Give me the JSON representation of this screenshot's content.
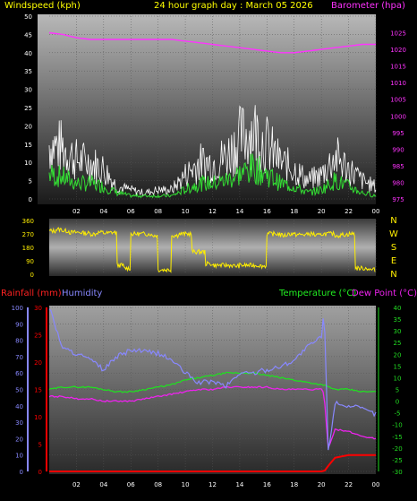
{
  "header": {
    "left_label": "Windspeed (kph)",
    "center_label": "24 hour graph day : March 05 2026",
    "right_label": "Barometer (hpa)"
  },
  "colors": {
    "background": "#000000",
    "gust": "#ffffff",
    "avg_wind": "#33dd33",
    "barometer": "#ff33ff",
    "direction": "#ffee00",
    "rainfall": "#ff0000",
    "humidity": "#8888ff",
    "temperature": "#22dd22",
    "dew_point": "#ee22ee",
    "header_yellow": "#ffff00",
    "header_magenta": "#ff33ff",
    "header_red": "#ff2222",
    "header_blue": "#8888ff",
    "header_green": "#22ee22",
    "axis_text": "#ffffff"
  },
  "x_ticks": [
    "02",
    "04",
    "06",
    "08",
    "10",
    "12",
    "14",
    "16",
    "18",
    "20",
    "22",
    "00"
  ],
  "compass": [
    "N",
    "W",
    "S",
    "E",
    "N"
  ],
  "bottom_header": {
    "rain_label": "Rainfall (mm)",
    "humidity_label": "Humidity",
    "temp_label": "Temperature (°C)",
    "dew_label": "Dew Point (°C)"
  },
  "chart_data": [
    {
      "type": "line",
      "name": "wind-barometer",
      "x": [
        0,
        1,
        2,
        3,
        4,
        5,
        6,
        7,
        8,
        9,
        10,
        11,
        12,
        13,
        14,
        15,
        16,
        17,
        18,
        19,
        20,
        21,
        22,
        23,
        24
      ],
      "x_ticks": [
        "02",
        "04",
        "06",
        "08",
        "10",
        "12",
        "14",
        "16",
        "18",
        "20",
        "22",
        "00"
      ],
      "y_left": {
        "label": "Windspeed (kph)",
        "ylim": [
          0,
          50
        ],
        "ticks": [
          0,
          5,
          10,
          15,
          20,
          25,
          30,
          35,
          40,
          45,
          50
        ]
      },
      "y_right": {
        "label": "Barometer (hpa)",
        "ylim": [
          975,
          1030
        ],
        "ticks": [
          975,
          980,
          985,
          990,
          995,
          1000,
          1005,
          1010,
          1015,
          1020,
          1025
        ]
      },
      "series": [
        {
          "name": "Gust",
          "axis": "left",
          "values": [
            18,
            17,
            13,
            12,
            10,
            4,
            3,
            2,
            3,
            3,
            8,
            12,
            12,
            14,
            20,
            23,
            18,
            12,
            10,
            6,
            8,
            14,
            10,
            6,
            4
          ]
        },
        {
          "name": "Average",
          "axis": "left",
          "values": [
            8,
            7,
            5,
            5,
            4,
            2,
            1,
            1,
            1,
            1,
            3,
            5,
            5,
            6,
            8,
            10,
            8,
            5,
            4,
            2,
            3,
            6,
            4,
            2,
            1
          ]
        },
        {
          "name": "Barometer",
          "axis": "right",
          "values": [
            1025,
            1024.5,
            1023.5,
            1023,
            1023,
            1023,
            1023,
            1023,
            1023,
            1023,
            1022.5,
            1022,
            1021.5,
            1021,
            1020.5,
            1020,
            1019.5,
            1019,
            1019,
            1019.5,
            1020,
            1020.5,
            1021,
            1021.5,
            1021.5
          ]
        }
      ]
    },
    {
      "type": "line",
      "name": "wind-direction",
      "x": [
        0,
        0.5,
        1,
        1.5,
        2,
        2.5,
        3,
        3.5,
        4,
        4.5,
        5,
        5.5,
        6,
        6.5,
        7,
        7.5,
        8,
        8.5,
        9,
        9.5,
        10,
        10.5,
        11,
        11.5,
        12,
        12.5,
        13,
        13.5,
        14,
        14.5,
        15,
        15.5,
        16,
        16.5,
        17,
        17.5,
        18,
        18.5,
        19,
        19.5,
        20,
        20.5,
        21,
        21.5,
        22,
        22.5,
        23,
        23.5,
        24
      ],
      "y": {
        "ylim": [
          0,
          360
        ],
        "ticks": [
          0,
          90,
          180,
          270,
          360
        ]
      },
      "series": [
        {
          "name": "Direction",
          "values": [
            290,
            300,
            290,
            280,
            280,
            275,
            270,
            280,
            275,
            280,
            60,
            40,
            270,
            270,
            270,
            260,
            30,
            30,
            260,
            270,
            270,
            150,
            150,
            70,
            60,
            60,
            60,
            55,
            60,
            60,
            60,
            55,
            270,
            270,
            260,
            270,
            265,
            265,
            270,
            260,
            270,
            270,
            260,
            265,
            270,
            40,
            40,
            30,
            30
          ]
        }
      ]
    },
    {
      "type": "line",
      "name": "rain-humidity-temperature",
      "x": [
        0,
        1,
        2,
        3,
        4,
        5,
        6,
        7,
        8,
        9,
        10,
        11,
        12,
        13,
        14,
        15,
        16,
        17,
        18,
        19,
        20,
        20.2,
        20.5,
        21,
        22,
        23,
        24
      ],
      "x_ticks": [
        "02",
        "04",
        "06",
        "08",
        "10",
        "12",
        "14",
        "16",
        "18",
        "20",
        "22",
        "00"
      ],
      "y_left_outer": {
        "label": "Humidity",
        "ylim": [
          0,
          100
        ],
        "ticks": [
          0,
          10,
          20,
          30,
          40,
          50,
          60,
          70,
          80,
          90,
          100
        ]
      },
      "y_left_inner": {
        "label": "Rainfall (mm)",
        "ylim": [
          0,
          30
        ],
        "ticks": [
          0,
          5,
          10,
          15,
          20,
          25,
          30
        ]
      },
      "y_right": {
        "label": "Temperature (°C)",
        "ylim": [
          -30,
          40
        ],
        "ticks": [
          -30,
          -25,
          -20,
          -15,
          -10,
          -5,
          0,
          5,
          10,
          15,
          20,
          25,
          30,
          35,
          40
        ]
      },
      "series": [
        {
          "name": "Humidity",
          "axis": "left_outer",
          "values": [
            100,
            75,
            72,
            68,
            62,
            70,
            74,
            73,
            72,
            68,
            60,
            54,
            55,
            52,
            60,
            60,
            62,
            64,
            68,
            76,
            82,
            100,
            12,
            42,
            40,
            38,
            35
          ]
        },
        {
          "name": "Rainfall",
          "axis": "left_inner",
          "values": [
            0,
            0,
            0,
            0,
            0,
            0,
            0,
            0,
            0,
            0,
            0,
            0,
            0,
            0,
            0,
            0,
            0,
            0,
            0,
            0,
            0,
            0,
            1,
            2.5,
            3,
            3,
            3
          ]
        },
        {
          "name": "Temperature",
          "axis": "right",
          "values": [
            5,
            6,
            6,
            6,
            5,
            4,
            4,
            5,
            6,
            7,
            9,
            10,
            11,
            12,
            12,
            12,
            11,
            10,
            9,
            8,
            7,
            7,
            6,
            5,
            5,
            4,
            4
          ]
        },
        {
          "name": "Dew Point",
          "axis": "right",
          "values": [
            2,
            2,
            1,
            1,
            0,
            0,
            0,
            1,
            2,
            3,
            4,
            5,
            5,
            6,
            6,
            6,
            6,
            5,
            5,
            5,
            5,
            3,
            -20,
            -12,
            -13,
            -15,
            -16
          ]
        }
      ]
    }
  ]
}
